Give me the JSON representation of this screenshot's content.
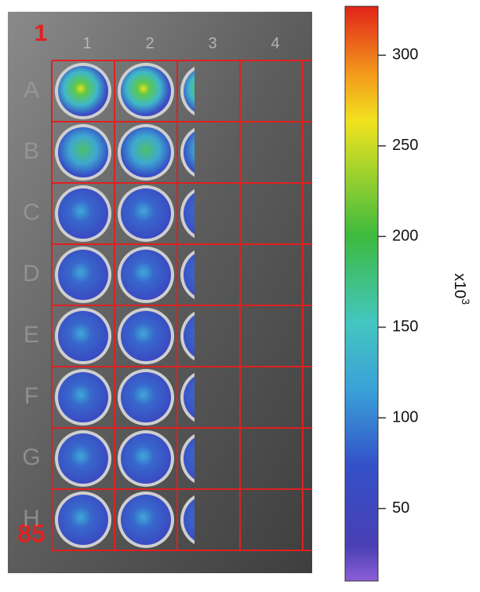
{
  "plate": {
    "corner_label_top": "1",
    "corner_label_bottom": "85",
    "row_labels": [
      "A",
      "B",
      "C",
      "D",
      "E",
      "F",
      "G",
      "H"
    ],
    "column_labels": [
      "1",
      "2",
      "3",
      "4"
    ]
  },
  "colorbar": {
    "lim": [
      10,
      327
    ],
    "ticks": [
      50,
      100,
      150,
      200,
      250,
      300
    ],
    "label": "x10",
    "label_exponent": "3"
  }
}
